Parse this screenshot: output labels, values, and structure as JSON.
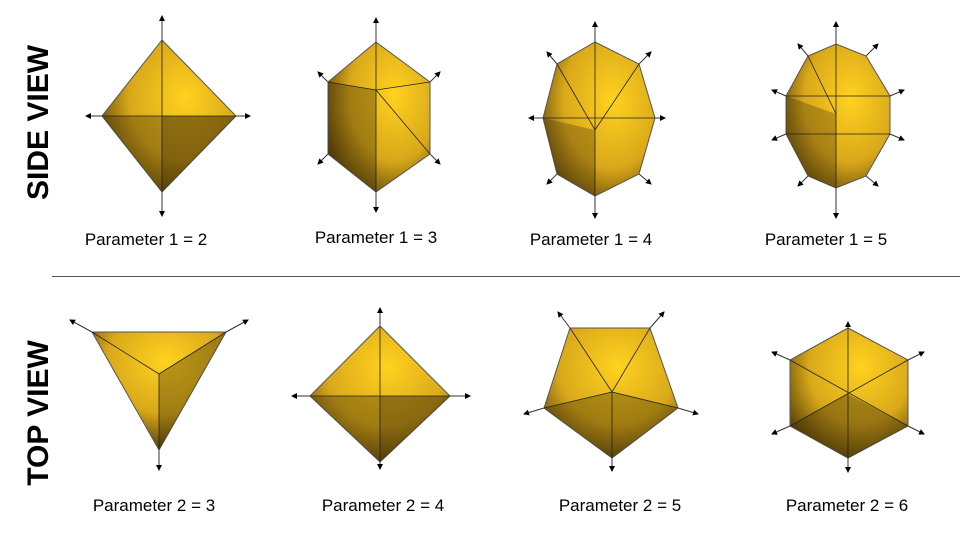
{
  "row_labels": {
    "side": "SIDE VIEW",
    "top": "TOP VIEW"
  },
  "colors": {
    "base": "#d9a81a",
    "highlight": "#ffd21f",
    "shadow": "#3a2a05",
    "edge": "#222222"
  },
  "side_view": [
    {
      "caption": "Parameter 1 = 2",
      "param": 2
    },
    {
      "caption": "Parameter 1 = 3",
      "param": 3
    },
    {
      "caption": "Parameter 1 = 4",
      "param": 4
    },
    {
      "caption": "Parameter 1 = 5",
      "param": 5
    }
  ],
  "top_view": [
    {
      "caption": "Parameter 2 = 3",
      "param": 3
    },
    {
      "caption": "Parameter 2 = 4",
      "param": 4
    },
    {
      "caption": "Parameter 2 = 5",
      "param": 5
    },
    {
      "caption": "Parameter 2 = 6",
      "param": 6
    }
  ]
}
